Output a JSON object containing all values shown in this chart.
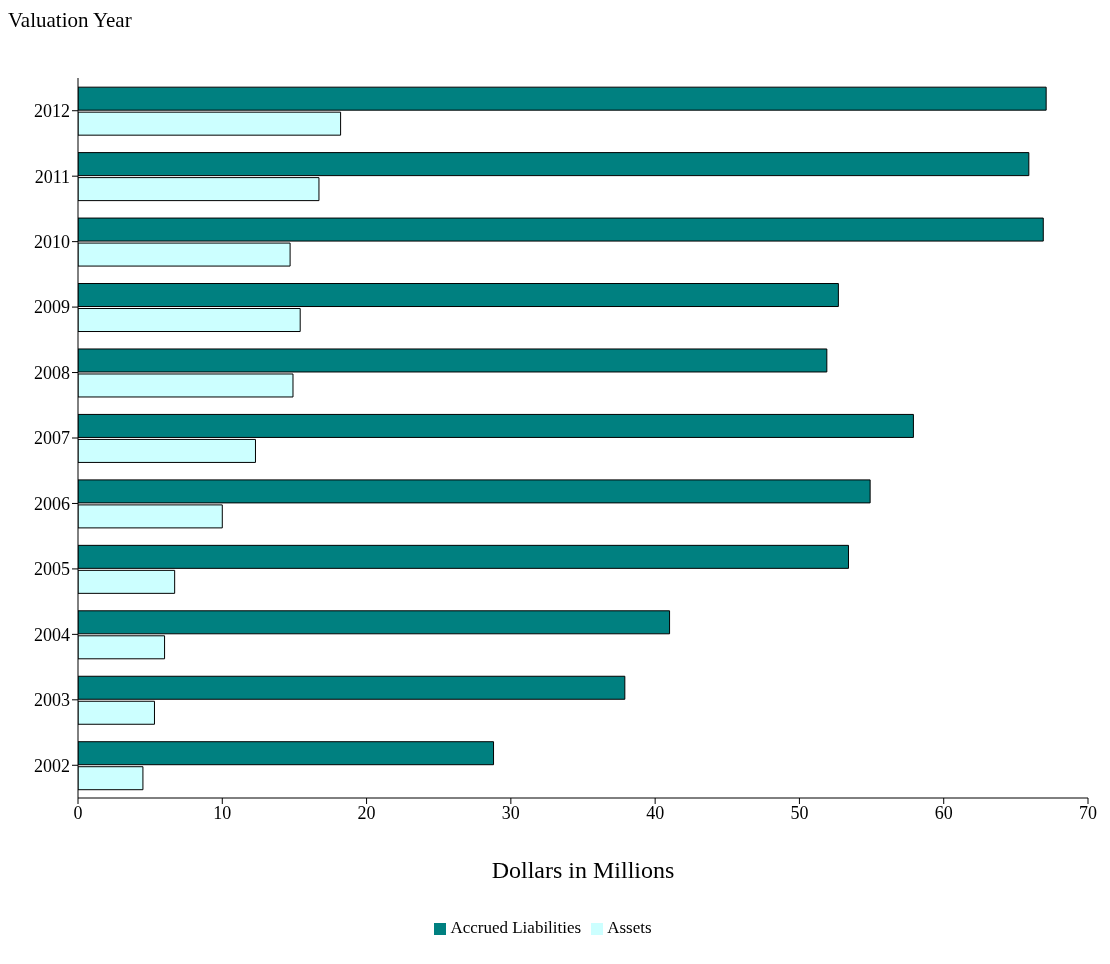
{
  "chart_data": {
    "type": "bar",
    "orientation": "horizontal",
    "ylabel": "Valuation Year",
    "xlabel": "Dollars in Millions",
    "categories": [
      "2012",
      "2011",
      "2010",
      "2009",
      "2008",
      "2007",
      "2006",
      "2005",
      "2004",
      "2003",
      "2002"
    ],
    "series": [
      {
        "name": "Accrued Liabilities",
        "color": "#008080",
        "values": [
          67.1,
          65.9,
          66.9,
          52.7,
          51.9,
          57.9,
          54.9,
          53.4,
          41.0,
          37.9,
          28.8
        ]
      },
      {
        "name": "Assets",
        "color": "#ccffff",
        "values": [
          18.2,
          16.7,
          14.7,
          15.4,
          14.9,
          12.3,
          10.0,
          6.7,
          6.0,
          5.3,
          4.5
        ]
      }
    ],
    "xlim": [
      0,
      70
    ],
    "xticks": [
      0,
      10,
      20,
      30,
      40,
      50,
      60,
      70
    ],
    "grid": false,
    "legend": "bottom"
  }
}
